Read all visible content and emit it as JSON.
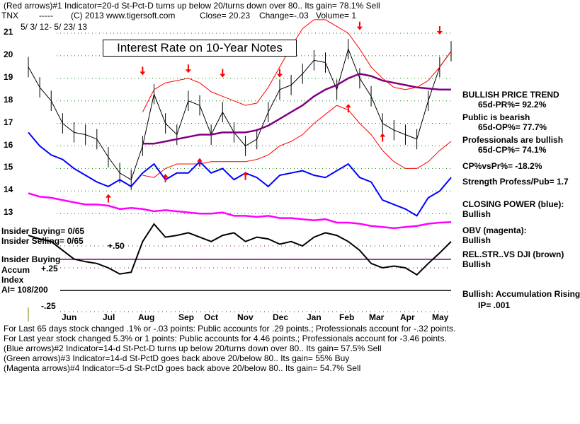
{
  "header": {
    "line1": "(Red arrows)#1 Indicator=20-d St-Pct-D turns up below 20/turns down over 80.. Its gain= 78.1% Sell",
    "ticker": "TNX",
    "dashes": "-----",
    "copyright": "(C) 2013 www.tigersoft.com",
    "close": "Close=  20.23",
    "change": "Change=-.03",
    "volume": "Volume= 1",
    "date_range": "5/ 3/ 12- 5/ 23/ 13"
  },
  "right_panel": {
    "trend": "BULLISH PRICE TREND",
    "pr": "65d-PR%= 92.2%",
    "public": "Public is bearish",
    "op": "65d-OP%= 77.7%",
    "pros": "Professionals are bullish",
    "cp": "65d-CP%= 74.1%",
    "cpvspr": "CP%vsPr%= -18.2%",
    "strength": "Strength Profess/Pub= 1.7",
    "closing_power": "CLOSING POWER (blue):",
    "closing_power_val": "Bullish",
    "obv": "OBV (magenta):",
    "obv_val": "Bullish",
    "relstr": "REL.STR..VS DJI (brown)",
    "relstr_val": "Bullish",
    "accum": "Bullish: Accumulation Rising",
    "ip": "IP=  .001"
  },
  "left_panel": {
    "insider_buying": "Insider Buying= 0/65",
    "insider_selling": "Insider Selling= 0/65",
    "insider_buying_label": "Insider Buying",
    "accum": "Accum",
    "index": "Index",
    "ai": "AI= 108/200"
  },
  "footer": {
    "line1": "For Last 65 days stock changed  .1% or -.03 points:  Public accounts for  .29 points.;  Professionals account for -.32 points.",
    "line2": "For Last year stock changed  5.3% or  1 points:  Public accounts for  4.46 points.;  Professionals account for -3.46 points.",
    "line3": "(Blue arrows)#2 Indicator=14-d St-Pct-D turns up below 20/turns down over 80.. Its gain= 57.5% Sell",
    "line4": "(Green arrows)#3 Indicator=14-d St-PctD goes back above 20/below 80.. Its gain= 55% Buy",
    "line5": "(Magenta arrows)#4 Indicator=5-d St-PctD goes back above 20/below 80.. Its gain= 54.7% Sell"
  },
  "chart_data": {
    "type": "line",
    "title": "Interest Rate on 10-Year Notes",
    "x_labels": [
      "Jun",
      "Jul",
      "Aug",
      "Sep",
      "Oct",
      "Nov",
      "Dec",
      "Jan",
      "Feb",
      "Mar",
      "Apr",
      "May"
    ],
    "price_ticks": [
      "21",
      "20",
      "19",
      "18",
      "17",
      "16",
      "15",
      "14",
      "13"
    ],
    "price_ylim": [
      13,
      21
    ],
    "accum_ticks": [
      "+.50",
      "+.25",
      "-.25"
    ],
    "series": [
      {
        "name": "price",
        "color": "#000000",
        "values": [
          19.5,
          18.6,
          18.0,
          17.0,
          16.6,
          16.5,
          16.3,
          15.5,
          14.8,
          14.5,
          16.0,
          18.3,
          17.0,
          16.5,
          18.0,
          17.8,
          16.5,
          17.5,
          16.6,
          16.0,
          16.3,
          17.5,
          18.5,
          18.7,
          19.2,
          19.8,
          19.7,
          18.5,
          20.3,
          19.0,
          18.2,
          17.0,
          16.7,
          16.5,
          16.3,
          18.0,
          19.5,
          20.2
        ]
      },
      {
        "name": "moving-average",
        "color": "#800080",
        "values": [
          null,
          null,
          null,
          null,
          null,
          null,
          null,
          null,
          null,
          null,
          16.1,
          16.1,
          16.2,
          16.3,
          16.4,
          16.5,
          16.5,
          16.6,
          16.6,
          16.6,
          16.7,
          16.9,
          17.2,
          17.5,
          17.8,
          18.2,
          18.5,
          18.7,
          19.0,
          19.2,
          19.1,
          18.9,
          18.8,
          18.7,
          18.6,
          18.55,
          18.5,
          18.5
        ]
      },
      {
        "name": "upper-band",
        "color": "#ff0000",
        "values": [
          null,
          null,
          null,
          null,
          null,
          null,
          null,
          null,
          null,
          null,
          17.5,
          18.5,
          18.8,
          18.9,
          19.0,
          18.8,
          18.4,
          18.2,
          18.0,
          17.8,
          17.9,
          18.6,
          19.5,
          20.4,
          21.2,
          21.6,
          21.6,
          21.3,
          21.0,
          20.3,
          19.5,
          19.0,
          18.6,
          18.5,
          18.6,
          18.9,
          19.5,
          20.2
        ]
      },
      {
        "name": "lower-band",
        "color": "#ff0000",
        "values": [
          null,
          null,
          null,
          null,
          null,
          null,
          null,
          null,
          null,
          null,
          14.7,
          14.6,
          15.0,
          15.2,
          15.2,
          15.2,
          15.3,
          15.3,
          15.3,
          15.3,
          15.4,
          15.6,
          16.0,
          16.2,
          16.5,
          17.0,
          17.4,
          17.8,
          17.6,
          17.0,
          16.5,
          15.8,
          15.3,
          15.0,
          15.0,
          15.3,
          15.8,
          16.2
        ]
      },
      {
        "name": "closing-power",
        "color": "#0000ff",
        "values": [
          16.6,
          16.0,
          15.6,
          15.4,
          15.0,
          14.7,
          14.4,
          14.2,
          14.5,
          14.2,
          14.8,
          15.2,
          14.5,
          14.8,
          14.8,
          15.3,
          14.8,
          15.0,
          14.5,
          14.8,
          14.6,
          14.2,
          14.7,
          14.8,
          14.9,
          14.7,
          14.6,
          14.9,
          15.2,
          14.6,
          14.4,
          13.6,
          13.4,
          13.2,
          12.9,
          13.7,
          14.0,
          14.6
        ]
      },
      {
        "name": "obv",
        "color": "#ff00ff",
        "values": [
          13.9,
          13.75,
          13.7,
          13.6,
          13.5,
          13.4,
          13.4,
          13.35,
          13.2,
          13.25,
          13.2,
          13.1,
          13.15,
          13.1,
          13.05,
          13.0,
          13.0,
          13.05,
          12.9,
          12.9,
          12.85,
          12.9,
          12.8,
          12.8,
          12.75,
          12.7,
          12.75,
          12.6,
          12.6,
          12.55,
          12.45,
          12.4,
          12.35,
          12.4,
          12.45,
          12.55,
          12.6,
          12.62
        ]
      },
      {
        "name": "accumulation-index",
        "color": "#000000",
        "values": [
          0.62,
          0.58,
          0.55,
          0.45,
          0.35,
          0.32,
          0.3,
          0.25,
          0.18,
          0.2,
          0.55,
          0.75,
          0.6,
          0.62,
          0.65,
          0.6,
          0.55,
          0.62,
          0.65,
          0.55,
          0.6,
          0.58,
          0.52,
          0.55,
          0.5,
          0.6,
          0.65,
          0.62,
          0.55,
          0.45,
          0.3,
          0.25,
          0.27,
          0.25,
          0.17,
          0.3,
          0.42,
          0.55
        ]
      }
    ],
    "down_arrows": [
      {
        "i": 10,
        "v": 19.2
      },
      {
        "i": 14,
        "v": 19.3
      },
      {
        "i": 17,
        "v": 19.1
      },
      {
        "i": 22,
        "v": 19.1
      },
      {
        "i": 29,
        "v": 21.2
      },
      {
        "i": 36,
        "v": 21.0
      }
    ],
    "up_arrows": [
      {
        "i": 7,
        "v": 13.8
      },
      {
        "i": 12,
        "v": 14.7
      },
      {
        "i": 15,
        "v": 15.4
      },
      {
        "i": 19,
        "v": 14.8
      },
      {
        "i": 28,
        "v": 17.8
      },
      {
        "i": 31,
        "v": 16.5
      }
    ]
  }
}
